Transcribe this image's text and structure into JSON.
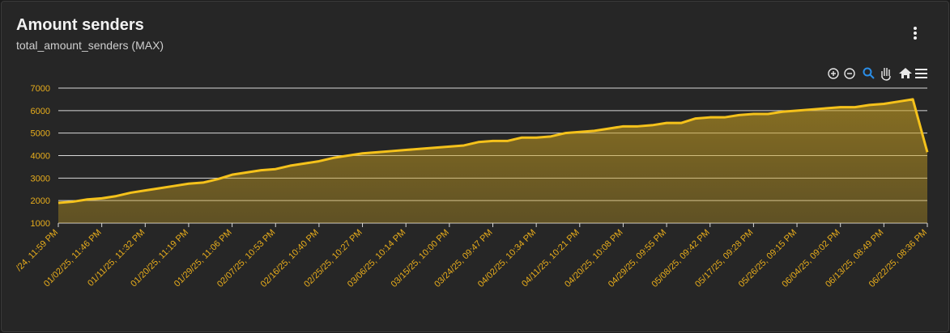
{
  "chart_data": {
    "type": "area",
    "title": "Amount senders",
    "subtitle": "total_amount_senders (MAX)",
    "categories": [
      "/24, 11:59 PM",
      null,
      null,
      "01/02/25, 11:46 PM",
      null,
      null,
      "01/11/25, 11:32 PM",
      null,
      null,
      "01/20/25, 11:19 PM",
      null,
      null,
      "01/29/25, 11:06 PM",
      null,
      null,
      "02/07/25, 10:53 PM",
      null,
      null,
      "02/16/25, 10:40 PM",
      null,
      null,
      "02/25/25, 10:27 PM",
      null,
      null,
      "03/06/25, 10:14 PM",
      null,
      null,
      "03/15/25, 10:00 PM",
      null,
      null,
      "03/24/25, 09:47 PM",
      null,
      null,
      "04/02/25, 10:34 PM",
      null,
      null,
      "04/11/25, 10:21 PM",
      null,
      null,
      "04/20/25, 10:08 PM",
      null,
      null,
      "04/29/25, 09:55 PM",
      null,
      null,
      "05/08/25, 09:42 PM",
      null,
      null,
      "05/17/25, 09:28 PM",
      null,
      null,
      "05/26/25, 09:15 PM",
      null,
      null,
      "06/04/25, 09:02 PM",
      null,
      null,
      "06/13/25, 08:49 PM",
      null,
      null,
      "06/22/25, 08:36 PM"
    ],
    "values": [
      1900,
      1950,
      2050,
      2100,
      2200,
      2350,
      2450,
      2550,
      2650,
      2750,
      2800,
      2950,
      3150,
      3250,
      3350,
      3400,
      3550,
      3650,
      3750,
      3900,
      4000,
      4100,
      4150,
      4200,
      4250,
      4300,
      4350,
      4400,
      4450,
      4600,
      4650,
      4650,
      4800,
      4800,
      4850,
      5000,
      5050,
      5100,
      5200,
      5300,
      5300,
      5350,
      5450,
      5450,
      5650,
      5700,
      5700,
      5800,
      5850,
      5850,
      5950,
      6000,
      6050,
      6100,
      6150,
      6150,
      6250,
      6300,
      6400,
      6500,
      4150
    ],
    "color": "#f5c21b",
    "axis_label_color": "#e8ad1c",
    "ylim": [
      1000,
      7000
    ],
    "yticks": [
      1000,
      2000,
      3000,
      4000,
      5000,
      6000,
      7000
    ],
    "grid": true
  }
}
